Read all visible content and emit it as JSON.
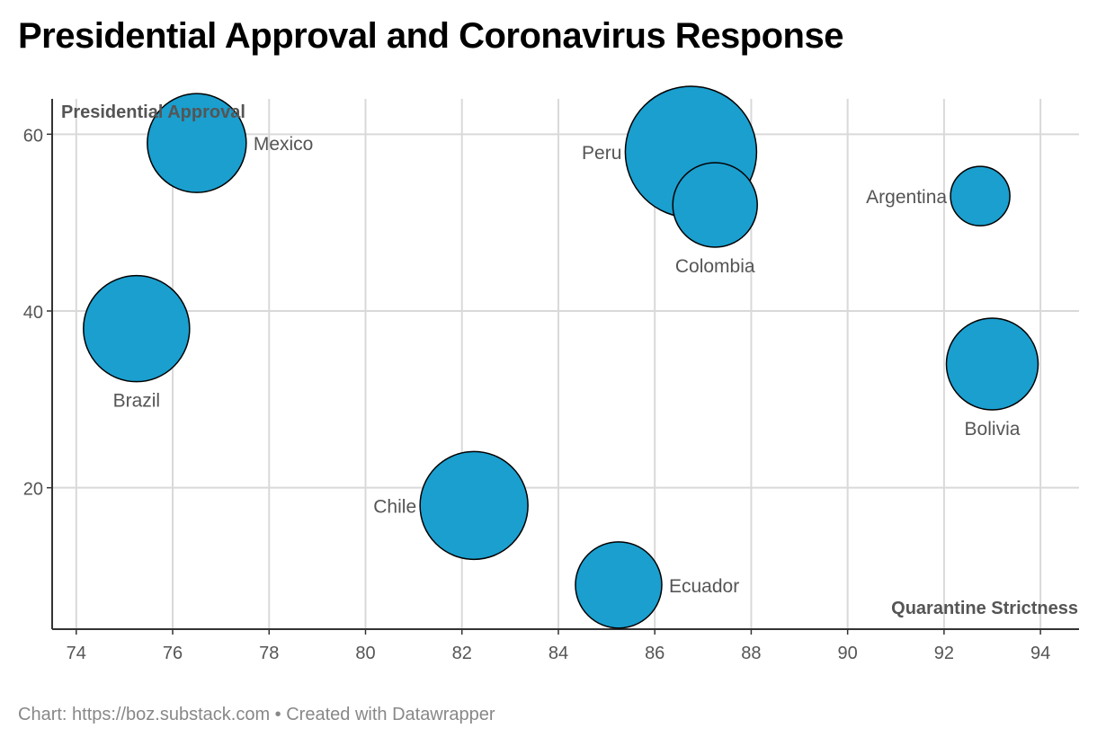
{
  "title": "Presidential Approval and Coronavirus Response",
  "footer": "Chart: https://boz.substack.com • Created with Datawrapper",
  "chart_data": {
    "type": "scatter",
    "xlabel": "Quarantine Strictness",
    "ylabel": "Presidential Approval",
    "xlim": [
      73.5,
      94.8
    ],
    "ylim": [
      4,
      64
    ],
    "x_ticks": [
      74,
      76,
      78,
      80,
      82,
      84,
      86,
      88,
      90,
      92,
      94
    ],
    "y_ticks": [
      20,
      40,
      60
    ],
    "grid": true,
    "bubble_size_unit": "relative",
    "colors": {
      "bubble": "#1a9fcf",
      "stroke": "#000000",
      "grid": "#d9d9d9",
      "axis": "#333333",
      "text": "#555555"
    },
    "points": [
      {
        "label": "Mexico",
        "x": 76.5,
        "y": 59,
        "size": 55,
        "label_pos": "right"
      },
      {
        "label": "Brazil",
        "x": 75.25,
        "y": 38,
        "size": 59,
        "label_pos": "below"
      },
      {
        "label": "Peru",
        "x": 86.75,
        "y": 58,
        "size": 73,
        "label_pos": "left"
      },
      {
        "label": "Colombia",
        "x": 87.25,
        "y": 52,
        "size": 47,
        "label_pos": "below"
      },
      {
        "label": "Argentina",
        "x": 92.75,
        "y": 53,
        "size": 33,
        "label_pos": "left"
      },
      {
        "label": "Bolivia",
        "x": 93,
        "y": 34,
        "size": 51,
        "label_pos": "below"
      },
      {
        "label": "Chile",
        "x": 82.25,
        "y": 18,
        "size": 60,
        "label_pos": "left"
      },
      {
        "label": "Ecuador",
        "x": 85.25,
        "y": 9,
        "size": 48,
        "label_pos": "right"
      }
    ]
  }
}
